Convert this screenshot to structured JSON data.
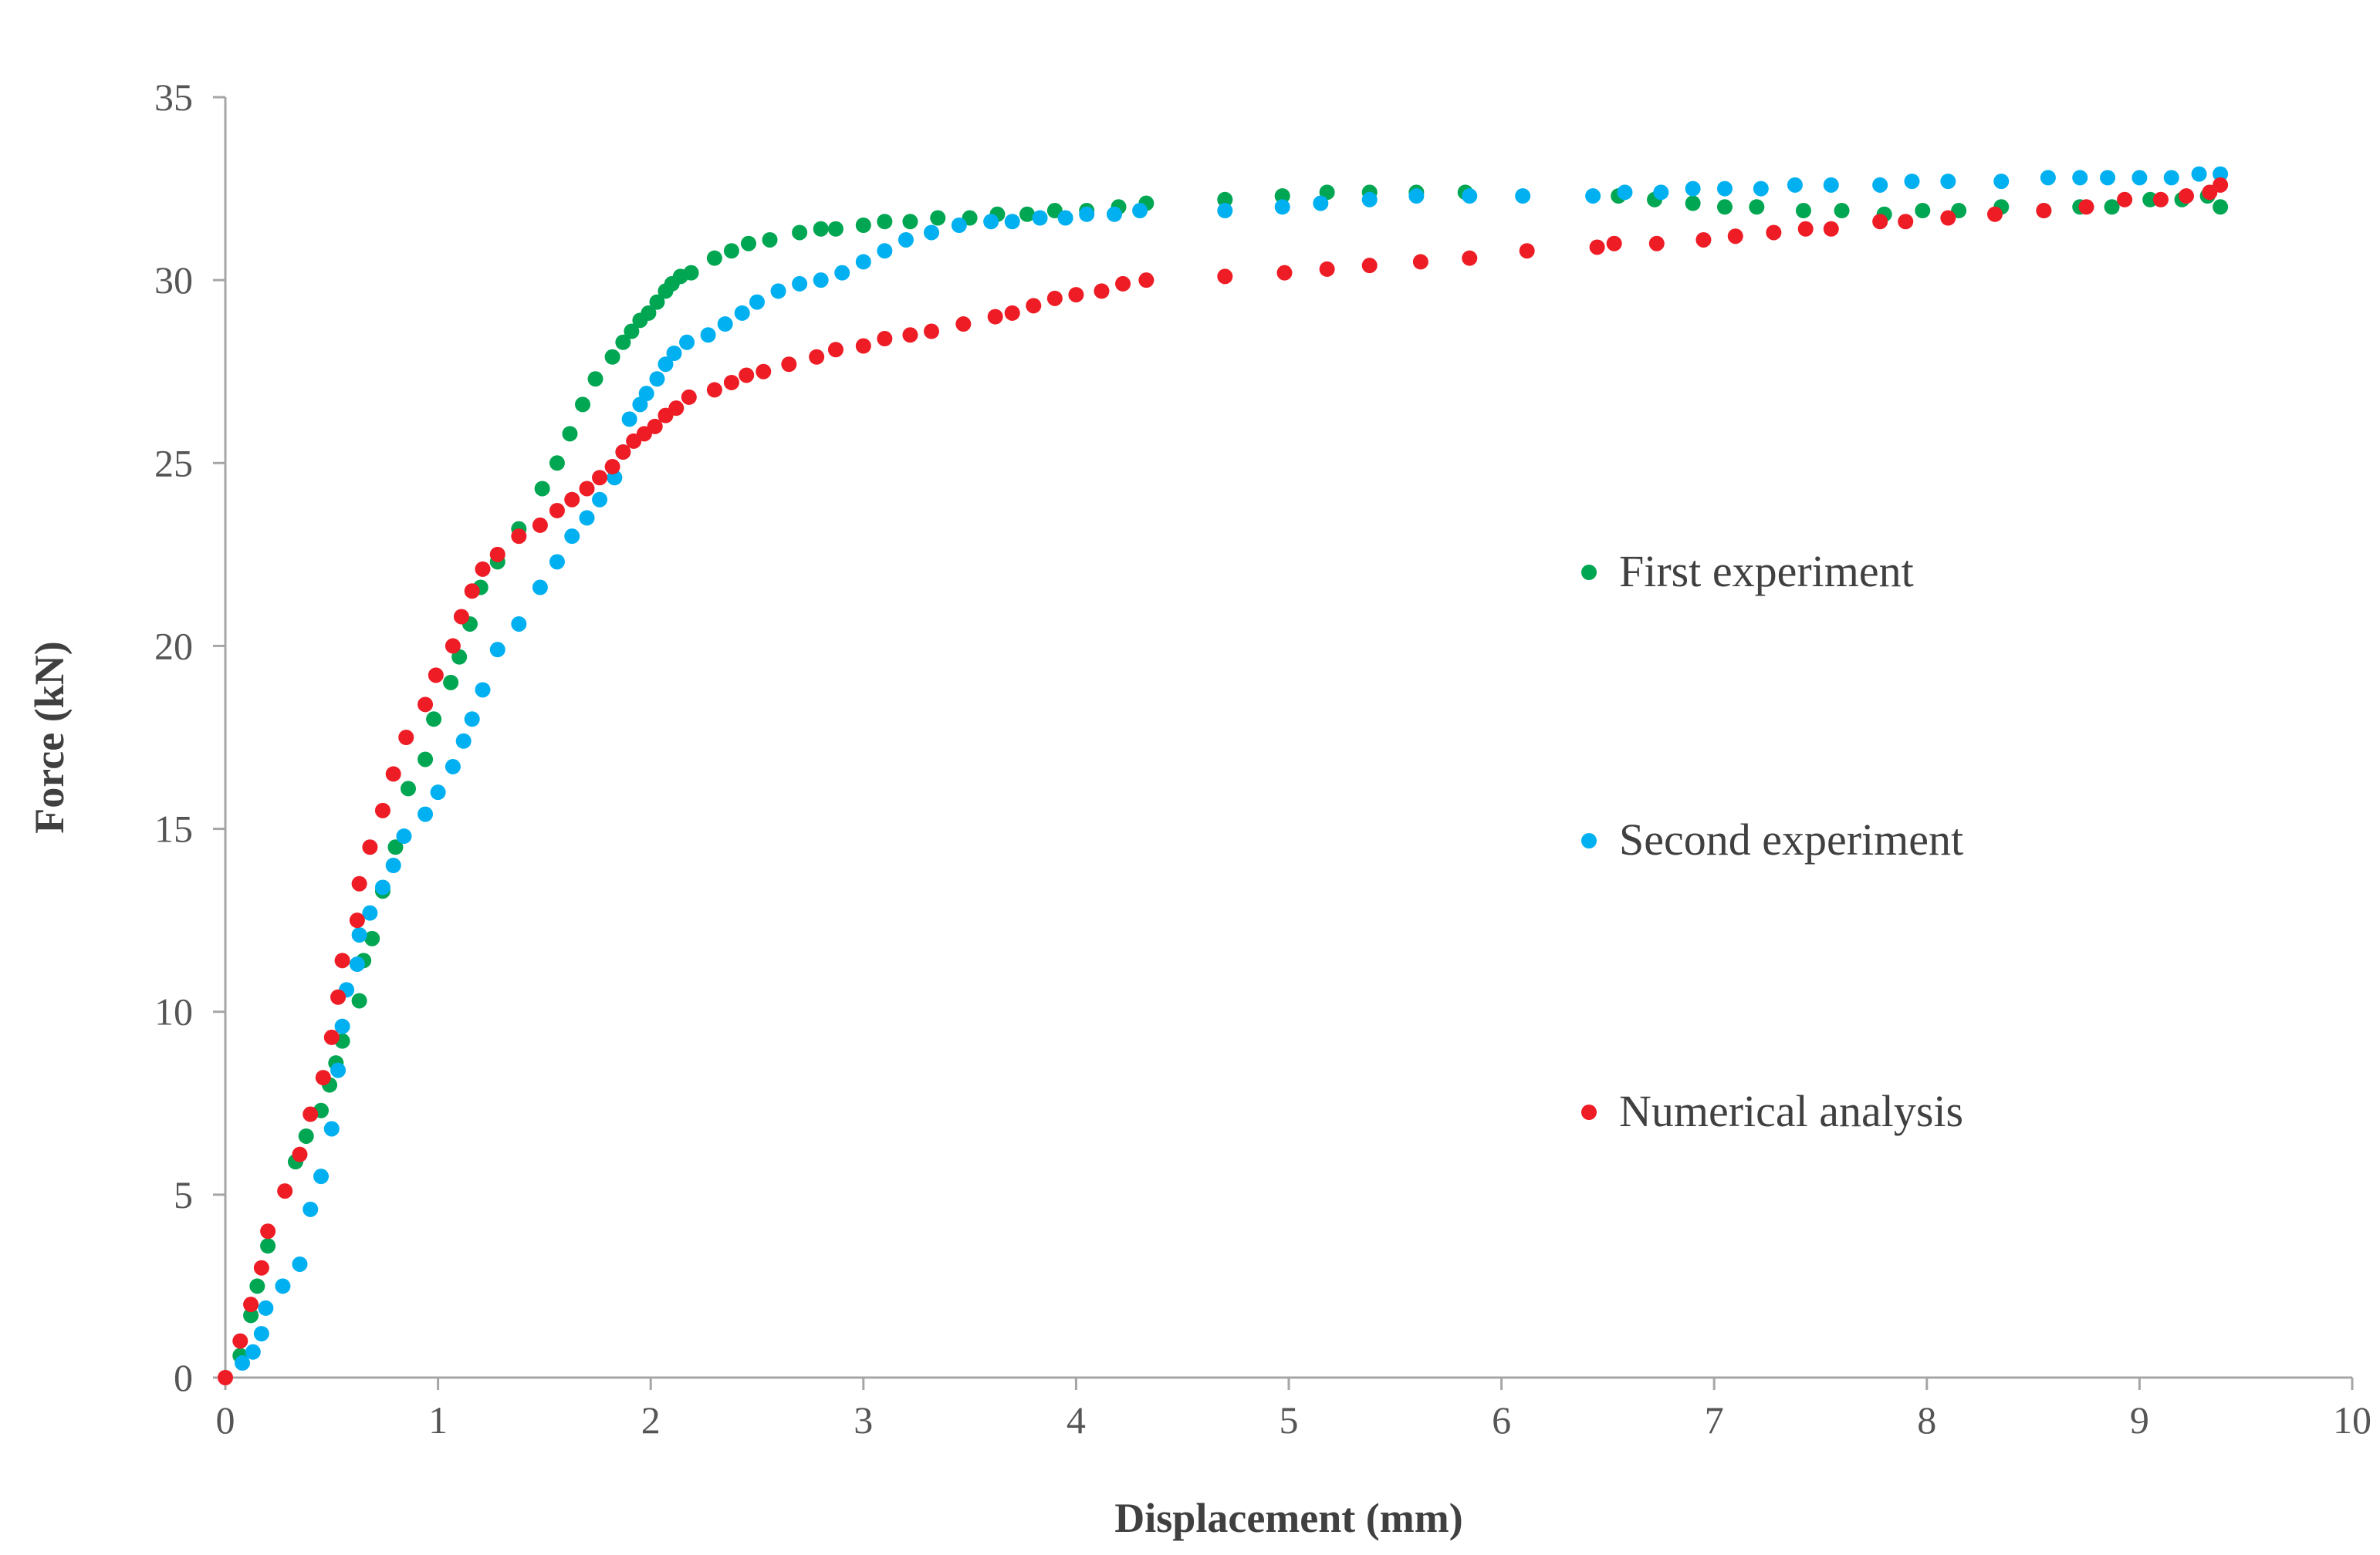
{
  "chart_data": {
    "type": "scatter",
    "title": "",
    "xlabel": "Displacement (mm)",
    "ylabel": "Force (kN)",
    "xlim": [
      0,
      10
    ],
    "ylim": [
      0,
      35
    ],
    "xticks": [
      0,
      1,
      2,
      3,
      4,
      5,
      6,
      7,
      8,
      9,
      10
    ],
    "yticks": [
      0,
      5,
      10,
      15,
      20,
      25,
      30,
      35
    ],
    "grid": false,
    "legend_position": "right-center",
    "series": [
      {
        "name": "First experiment",
        "color": "#00A651",
        "points": [
          [
            0.07,
            0.6
          ],
          [
            0.12,
            1.7
          ],
          [
            0.15,
            2.5
          ],
          [
            0.2,
            3.6
          ],
          [
            0.33,
            5.9
          ],
          [
            0.38,
            6.6
          ],
          [
            0.45,
            7.3
          ],
          [
            0.49,
            8.0
          ],
          [
            0.52,
            8.6
          ],
          [
            0.55,
            9.2
          ],
          [
            0.63,
            10.3
          ],
          [
            0.65,
            11.4
          ],
          [
            0.69,
            12.0
          ],
          [
            0.74,
            13.3
          ],
          [
            0.8,
            14.5
          ],
          [
            0.86,
            16.1
          ],
          [
            0.94,
            16.9
          ],
          [
            0.98,
            18.0
          ],
          [
            1.06,
            19.0
          ],
          [
            1.1,
            19.7
          ],
          [
            1.15,
            20.6
          ],
          [
            1.2,
            21.6
          ],
          [
            1.28,
            22.3
          ],
          [
            1.38,
            23.2
          ],
          [
            1.49,
            24.3
          ],
          [
            1.56,
            25.0
          ],
          [
            1.62,
            25.8
          ],
          [
            1.68,
            26.6
          ],
          [
            1.74,
            27.3
          ],
          [
            1.82,
            27.9
          ],
          [
            1.87,
            28.3
          ],
          [
            1.91,
            28.6
          ],
          [
            1.95,
            28.9
          ],
          [
            1.99,
            29.1
          ],
          [
            2.03,
            29.4
          ],
          [
            2.07,
            29.7
          ],
          [
            2.1,
            29.9
          ],
          [
            2.14,
            30.1
          ],
          [
            2.19,
            30.2
          ],
          [
            2.3,
            30.6
          ],
          [
            2.38,
            30.8
          ],
          [
            2.46,
            31.0
          ],
          [
            2.56,
            31.1
          ],
          [
            2.7,
            31.3
          ],
          [
            2.8,
            31.4
          ],
          [
            2.87,
            31.4
          ],
          [
            3.0,
            31.5
          ],
          [
            3.1,
            31.6
          ],
          [
            3.22,
            31.6
          ],
          [
            3.35,
            31.7
          ],
          [
            3.5,
            31.7
          ],
          [
            3.63,
            31.8
          ],
          [
            3.77,
            31.8
          ],
          [
            3.9,
            31.9
          ],
          [
            4.05,
            31.9
          ],
          [
            4.2,
            32.0
          ],
          [
            4.33,
            32.1
          ],
          [
            4.7,
            32.2
          ],
          [
            4.97,
            32.3
          ],
          [
            5.18,
            32.4
          ],
          [
            5.38,
            32.4
          ],
          [
            5.6,
            32.4
          ],
          [
            5.83,
            32.4
          ],
          [
            6.55,
            32.3
          ],
          [
            6.72,
            32.2
          ],
          [
            6.9,
            32.1
          ],
          [
            7.05,
            32.0
          ],
          [
            7.2,
            32.0
          ],
          [
            7.42,
            31.9
          ],
          [
            7.6,
            31.9
          ],
          [
            7.8,
            31.8
          ],
          [
            7.98,
            31.9
          ],
          [
            8.15,
            31.9
          ],
          [
            8.35,
            32.0
          ],
          [
            8.55,
            31.9
          ],
          [
            8.72,
            32.0
          ],
          [
            8.87,
            32.0
          ],
          [
            9.05,
            32.2
          ],
          [
            9.2,
            32.2
          ],
          [
            9.32,
            32.3
          ],
          [
            9.38,
            32.0
          ]
        ]
      },
      {
        "name": "Second experiment",
        "color": "#00B0F0",
        "points": [
          [
            0.08,
            0.4
          ],
          [
            0.13,
            0.7
          ],
          [
            0.17,
            1.2
          ],
          [
            0.19,
            1.9
          ],
          [
            0.27,
            2.5
          ],
          [
            0.35,
            3.1
          ],
          [
            0.4,
            4.6
          ],
          [
            0.45,
            5.5
          ],
          [
            0.5,
            6.8
          ],
          [
            0.53,
            8.4
          ],
          [
            0.55,
            9.6
          ],
          [
            0.57,
            10.6
          ],
          [
            0.62,
            11.3
          ],
          [
            0.63,
            12.1
          ],
          [
            0.68,
            12.7
          ],
          [
            0.74,
            13.4
          ],
          [
            0.79,
            14.0
          ],
          [
            0.84,
            14.8
          ],
          [
            0.94,
            15.4
          ],
          [
            1.0,
            16.0
          ],
          [
            1.07,
            16.7
          ],
          [
            1.12,
            17.4
          ],
          [
            1.16,
            18.0
          ],
          [
            1.21,
            18.8
          ],
          [
            1.28,
            19.9
          ],
          [
            1.38,
            20.6
          ],
          [
            1.48,
            21.6
          ],
          [
            1.56,
            22.3
          ],
          [
            1.63,
            23.0
          ],
          [
            1.7,
            23.5
          ],
          [
            1.76,
            24.0
          ],
          [
            1.83,
            24.6
          ],
          [
            1.87,
            25.3
          ],
          [
            1.9,
            26.2
          ],
          [
            1.95,
            26.6
          ],
          [
            1.98,
            26.9
          ],
          [
            2.03,
            27.3
          ],
          [
            2.07,
            27.7
          ],
          [
            2.11,
            28.0
          ],
          [
            2.17,
            28.3
          ],
          [
            2.27,
            28.5
          ],
          [
            2.35,
            28.8
          ],
          [
            2.43,
            29.1
          ],
          [
            2.5,
            29.4
          ],
          [
            2.6,
            29.7
          ],
          [
            2.7,
            29.9
          ],
          [
            2.8,
            30.0
          ],
          [
            2.9,
            30.2
          ],
          [
            3.0,
            30.5
          ],
          [
            3.1,
            30.8
          ],
          [
            3.2,
            31.1
          ],
          [
            3.32,
            31.3
          ],
          [
            3.45,
            31.5
          ],
          [
            3.6,
            31.6
          ],
          [
            3.7,
            31.6
          ],
          [
            3.83,
            31.7
          ],
          [
            3.95,
            31.7
          ],
          [
            4.05,
            31.8
          ],
          [
            4.18,
            31.8
          ],
          [
            4.3,
            31.9
          ],
          [
            4.7,
            31.9
          ],
          [
            4.97,
            32.0
          ],
          [
            5.15,
            32.1
          ],
          [
            5.38,
            32.2
          ],
          [
            5.6,
            32.3
          ],
          [
            5.85,
            32.3
          ],
          [
            6.1,
            32.3
          ],
          [
            6.43,
            32.3
          ],
          [
            6.58,
            32.4
          ],
          [
            6.75,
            32.4
          ],
          [
            6.9,
            32.5
          ],
          [
            7.05,
            32.5
          ],
          [
            7.22,
            32.5
          ],
          [
            7.38,
            32.6
          ],
          [
            7.55,
            32.6
          ],
          [
            7.78,
            32.6
          ],
          [
            7.93,
            32.7
          ],
          [
            8.1,
            32.7
          ],
          [
            8.35,
            32.7
          ],
          [
            8.57,
            32.8
          ],
          [
            8.72,
            32.8
          ],
          [
            8.85,
            32.8
          ],
          [
            9.0,
            32.8
          ],
          [
            9.15,
            32.8
          ],
          [
            9.28,
            32.9
          ],
          [
            9.38,
            32.9
          ]
        ]
      },
      {
        "name": "Numerical analysis",
        "color": "#EE1C25",
        "points": [
          [
            0.0,
            0.0
          ],
          [
            0.07,
            1.0
          ],
          [
            0.12,
            2.0
          ],
          [
            0.17,
            3.0
          ],
          [
            0.2,
            4.0
          ],
          [
            0.28,
            5.1
          ],
          [
            0.35,
            6.1
          ],
          [
            0.4,
            7.2
          ],
          [
            0.46,
            8.2
          ],
          [
            0.5,
            9.3
          ],
          [
            0.53,
            10.4
          ],
          [
            0.55,
            11.4
          ],
          [
            0.62,
            12.5
          ],
          [
            0.63,
            13.5
          ],
          [
            0.68,
            14.5
          ],
          [
            0.74,
            15.5
          ],
          [
            0.79,
            16.5
          ],
          [
            0.85,
            17.5
          ],
          [
            0.94,
            18.4
          ],
          [
            0.99,
            19.2
          ],
          [
            1.07,
            20.0
          ],
          [
            1.11,
            20.8
          ],
          [
            1.16,
            21.5
          ],
          [
            1.21,
            22.1
          ],
          [
            1.28,
            22.5
          ],
          [
            1.38,
            23.0
          ],
          [
            1.48,
            23.3
          ],
          [
            1.56,
            23.7
          ],
          [
            1.63,
            24.0
          ],
          [
            1.7,
            24.3
          ],
          [
            1.76,
            24.6
          ],
          [
            1.82,
            24.9
          ],
          [
            1.87,
            25.3
          ],
          [
            1.92,
            25.6
          ],
          [
            1.97,
            25.8
          ],
          [
            2.02,
            26.0
          ],
          [
            2.07,
            26.3
          ],
          [
            2.12,
            26.5
          ],
          [
            2.18,
            26.8
          ],
          [
            2.3,
            27.0
          ],
          [
            2.38,
            27.2
          ],
          [
            2.45,
            27.4
          ],
          [
            2.53,
            27.5
          ],
          [
            2.65,
            27.7
          ],
          [
            2.78,
            27.9
          ],
          [
            2.87,
            28.1
          ],
          [
            3.0,
            28.2
          ],
          [
            3.1,
            28.4
          ],
          [
            3.22,
            28.5
          ],
          [
            3.32,
            28.6
          ],
          [
            3.47,
            28.8
          ],
          [
            3.62,
            29.0
          ],
          [
            3.7,
            29.1
          ],
          [
            3.8,
            29.3
          ],
          [
            3.9,
            29.5
          ],
          [
            4.0,
            29.6
          ],
          [
            4.12,
            29.7
          ],
          [
            4.22,
            29.9
          ],
          [
            4.33,
            30.0
          ],
          [
            4.7,
            30.1
          ],
          [
            4.98,
            30.2
          ],
          [
            5.18,
            30.3
          ],
          [
            5.38,
            30.4
          ],
          [
            5.62,
            30.5
          ],
          [
            5.85,
            30.6
          ],
          [
            6.12,
            30.8
          ],
          [
            6.45,
            30.9
          ],
          [
            6.53,
            31.0
          ],
          [
            6.73,
            31.0
          ],
          [
            6.95,
            31.1
          ],
          [
            7.1,
            31.2
          ],
          [
            7.28,
            31.3
          ],
          [
            7.43,
            31.4
          ],
          [
            7.55,
            31.4
          ],
          [
            7.78,
            31.6
          ],
          [
            7.9,
            31.6
          ],
          [
            8.1,
            31.7
          ],
          [
            8.32,
            31.8
          ],
          [
            8.55,
            31.9
          ],
          [
            8.75,
            32.0
          ],
          [
            8.93,
            32.2
          ],
          [
            9.1,
            32.2
          ],
          [
            9.22,
            32.3
          ],
          [
            9.33,
            32.4
          ],
          [
            9.38,
            32.6
          ]
        ]
      }
    ]
  }
}
